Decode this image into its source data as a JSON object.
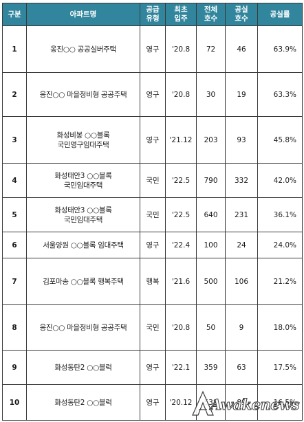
{
  "headers": {
    "no": "구분",
    "name": "아파트명",
    "type_line1": "공급",
    "type_line2": "유형",
    "first_line1": "최초",
    "first_line2": "입주",
    "total_line1": "전체",
    "total_line2": "호수",
    "vacant_line1": "공실",
    "vacant_line2": "호수",
    "rate": "공실률"
  },
  "rows": [
    {
      "no": "1",
      "name_line1": "옹진○○ 공공실버주택",
      "name_line2": "",
      "type": "영구",
      "first": "'20.8",
      "total": "72",
      "vacant": "46",
      "rate": "63.9%"
    },
    {
      "no": "2",
      "name_line1": "옹진○○ 마을정비형 공공주택",
      "name_line2": "",
      "type": "영구",
      "first": "'20.8",
      "total": "30",
      "vacant": "19",
      "rate": "63.3%"
    },
    {
      "no": "3",
      "name_line1": "화성비봉 ○○블록",
      "name_line2": "국민영구임대주택",
      "type": "영구",
      "first": "'21.12",
      "total": "203",
      "vacant": "93",
      "rate": "45.8%"
    },
    {
      "no": "4",
      "name_line1": "화성태안3 ○○블록",
      "name_line2": "국민임대주택",
      "type": "국민",
      "first": "'22.5",
      "total": "790",
      "vacant": "332",
      "rate": "42.0%"
    },
    {
      "no": "5",
      "name_line1": "화성태안3 ○○블록",
      "name_line2": "국민임대주택",
      "type": "국민",
      "first": "'22.5",
      "total": "640",
      "vacant": "231",
      "rate": "36.1%"
    },
    {
      "no": "6",
      "name_line1": "서울양원 ○○블록 임대주택",
      "name_line2": "",
      "type": "영구",
      "first": "'22.4",
      "total": "100",
      "vacant": "24",
      "rate": "24.0%"
    },
    {
      "no": "7",
      "name_line1": "김포마송 ○○블록 행복주택",
      "name_line2": "",
      "type": "행복",
      "first": "'21.6",
      "total": "500",
      "vacant": "106",
      "rate": "21.2%"
    },
    {
      "no": "8",
      "name_line1": "옹진○○ 마을정비형 공공주택",
      "name_line2": "",
      "type": "국민",
      "first": "'20.8",
      "total": "50",
      "vacant": "9",
      "rate": "18.0%"
    },
    {
      "no": "9",
      "name_line1": "화성동탄2 ○○블럭",
      "name_line2": "",
      "type": "영구",
      "first": "'22.1",
      "total": "359",
      "vacant": "63",
      "rate": "17.5%"
    },
    {
      "no": "10",
      "name_line1": "화성동탄2 ○○블럭",
      "name_line2": "",
      "type": "영구",
      "first": "'20.12",
      "total": "538",
      "vacant": "89",
      "rate": "16.5%"
    }
  ],
  "watermark": {
    "text": "Awakenews"
  },
  "colors": {
    "header_bg": "#31859c",
    "header_text": "#ffffff",
    "border": "#3a3a3a"
  }
}
